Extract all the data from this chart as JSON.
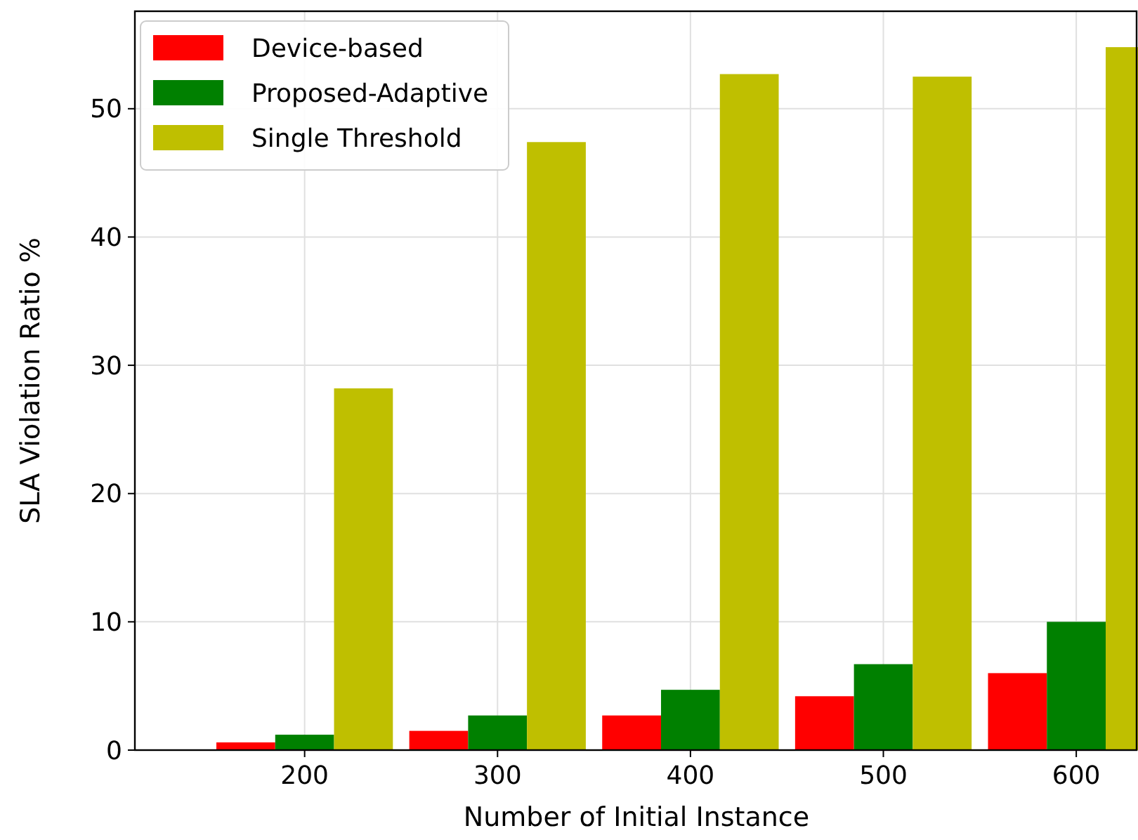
{
  "chart_data": {
    "type": "bar",
    "xlabel": "Number of Initial Instance",
    "ylabel": "SLA Violation Ratio %",
    "categories": [
      "200",
      "300",
      "400",
      "500",
      "600"
    ],
    "series": [
      {
        "name": "Device-based",
        "color": "#ff0000",
        "values": [
          0.6,
          1.5,
          2.7,
          4.2,
          6.0
        ]
      },
      {
        "name": "Proposed-Adaptive",
        "color": "#008000",
        "values": [
          1.2,
          2.7,
          4.7,
          6.7,
          10.0
        ]
      },
      {
        "name": "Single Threshold",
        "color": "#bfbf00",
        "values": [
          28.2,
          47.4,
          52.7,
          52.5,
          54.8
        ]
      }
    ],
    "ylim": [
      0,
      57.6
    ],
    "yticks": [
      0,
      10,
      20,
      30,
      40,
      50
    ],
    "grid": true,
    "legend": "top left"
  }
}
